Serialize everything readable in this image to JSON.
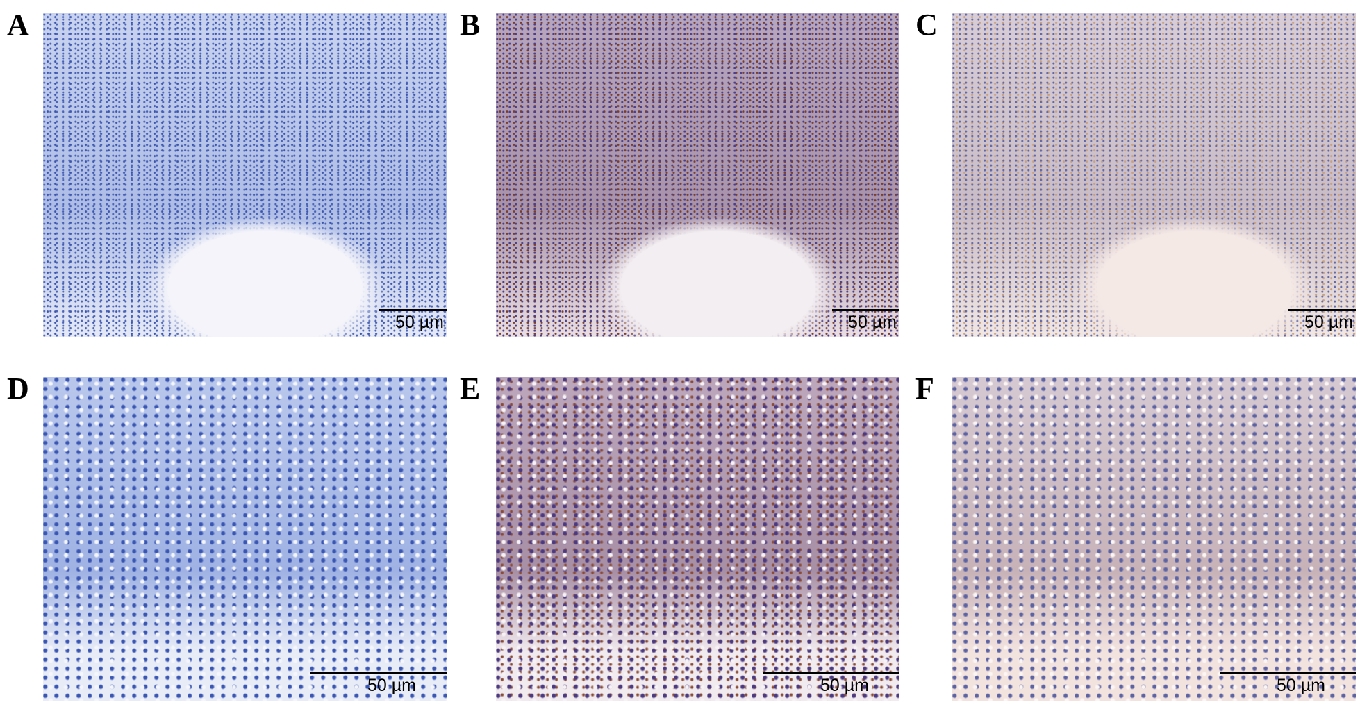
{
  "figure": {
    "panels": [
      {
        "label": "A",
        "stain": "blue",
        "scale_bar": "50 µm"
      },
      {
        "label": "B",
        "stain": "brown",
        "scale_bar": "50 µm"
      },
      {
        "label": "C",
        "stain": "tan",
        "scale_bar": "50 µm"
      },
      {
        "label": "D",
        "stain": "blue",
        "scale_bar": "50 µm"
      },
      {
        "label": "E",
        "stain": "brown",
        "scale_bar": "50 µm"
      },
      {
        "label": "F",
        "stain": "tan",
        "scale_bar": "50 µm"
      }
    ]
  }
}
